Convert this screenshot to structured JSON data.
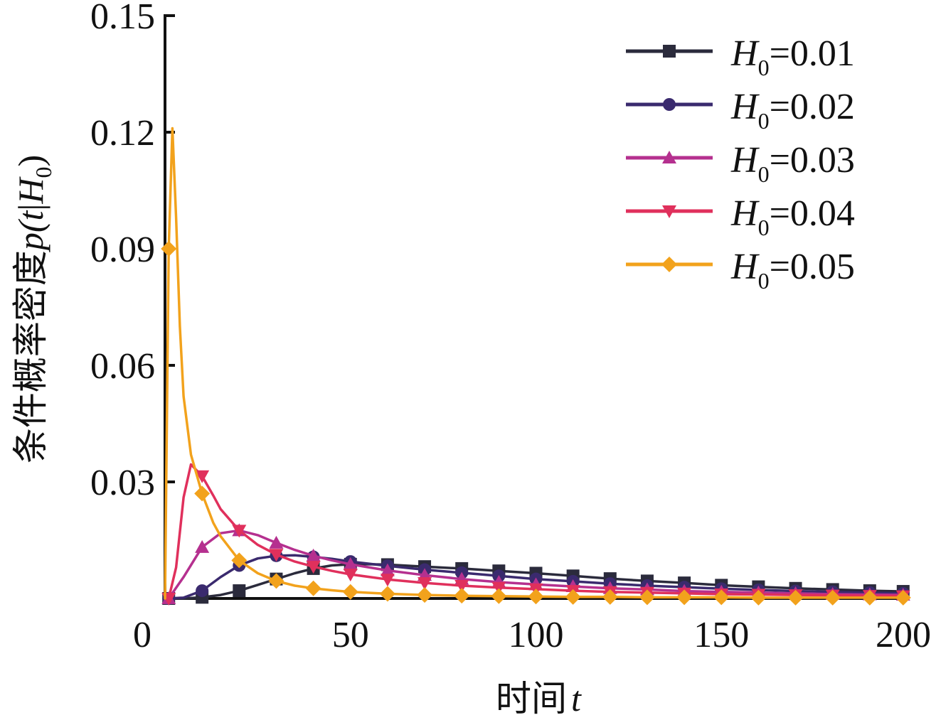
{
  "chart_data": {
    "type": "line",
    "title": "",
    "xlabel": {
      "text": "时间",
      "var": "t"
    },
    "ylabel": {
      "text": "条件概率密度",
      "func": "p(",
      "var": "t",
      "sep": "|",
      "cond": "H",
      "sub": "0",
      "close": ")"
    },
    "xlim": [
      0,
      200
    ],
    "ylim": [
      0,
      0.15
    ],
    "xticks": [
      {
        "v": 0,
        "label": "0"
      },
      {
        "v": 50,
        "label": "50"
      },
      {
        "v": 100,
        "label": "100"
      },
      {
        "v": 150,
        "label": "150"
      },
      {
        "v": 200,
        "label": "200"
      }
    ],
    "yticks": [
      {
        "v": 0.03,
        "label": "0.03"
      },
      {
        "v": 0.06,
        "label": "0.06"
      },
      {
        "v": 0.09,
        "label": "0.09"
      },
      {
        "v": 0.12,
        "label": "0.12"
      },
      {
        "v": 0.15,
        "label": "0.15"
      }
    ],
    "legend_position": "top-right",
    "series": [
      {
        "name": "H0=0.01",
        "legend_var": "H",
        "legend_sub": "0",
        "legend_value": "=0.01",
        "H0": 0.01,
        "color": "#2b2b3c",
        "marker": "square",
        "x": [
          1,
          5,
          10,
          15,
          20,
          25,
          30,
          35,
          40,
          45,
          50,
          55,
          60,
          70,
          80,
          90,
          100,
          110,
          120,
          130,
          140,
          150,
          160,
          170,
          180,
          190,
          200
        ],
        "y": [
          0,
          0,
          0.0003,
          0.0009,
          0.002,
          0.0035,
          0.005,
          0.0065,
          0.0077,
          0.0085,
          0.0088,
          0.0088,
          0.0087,
          0.0082,
          0.0077,
          0.0071,
          0.0065,
          0.0058,
          0.0051,
          0.0045,
          0.004,
          0.0034,
          0.003,
          0.0026,
          0.0023,
          0.002,
          0.0018
        ]
      },
      {
        "name": "H0=0.02",
        "legend_var": "H",
        "legend_sub": "0",
        "legend_value": "=0.02",
        "H0": 0.02,
        "color": "#3a2a6e",
        "marker": "circle",
        "x": [
          1,
          5,
          10,
          15,
          20,
          25,
          30,
          35,
          40,
          45,
          50,
          60,
          70,
          80,
          90,
          100,
          110,
          120,
          130,
          140,
          150,
          160,
          170,
          180,
          190,
          200
        ],
        "y": [
          0,
          0.0002,
          0.002,
          0.0055,
          0.0085,
          0.0103,
          0.011,
          0.0111,
          0.0107,
          0.0102,
          0.0095,
          0.0084,
          0.0074,
          0.0066,
          0.0058,
          0.005,
          0.0044,
          0.0038,
          0.0033,
          0.0029,
          0.0025,
          0.0022,
          0.0019,
          0.0017,
          0.0015,
          0.0013
        ]
      },
      {
        "name": "H0=0.03",
        "legend_var": "H",
        "legend_sub": "0",
        "legend_value": "=0.03",
        "H0": 0.03,
        "color": "#b5308f",
        "marker": "triangle-up",
        "x": [
          1,
          5,
          10,
          15,
          20,
          25,
          30,
          35,
          40,
          45,
          50,
          60,
          70,
          80,
          90,
          100,
          110,
          120,
          130,
          140,
          150,
          160,
          170,
          180,
          190,
          200
        ],
        "y": [
          0,
          0.0055,
          0.0132,
          0.0168,
          0.0175,
          0.0163,
          0.0143,
          0.0125,
          0.011,
          0.0098,
          0.0088,
          0.0072,
          0.006,
          0.005,
          0.0042,
          0.0036,
          0.0031,
          0.0026,
          0.0023,
          0.0019,
          0.0017,
          0.0015,
          0.0013,
          0.0011,
          0.001,
          0.0009
        ]
      },
      {
        "name": "H0=0.04",
        "legend_var": "H",
        "legend_sub": "0",
        "legend_value": "=0.04",
        "H0": 0.04,
        "color": "#e0305c",
        "marker": "triangle-down",
        "x": [
          1,
          3,
          5,
          7,
          10,
          13,
          15,
          20,
          25,
          30,
          35,
          40,
          45,
          50,
          60,
          70,
          80,
          90,
          100,
          110,
          120,
          130,
          140,
          150,
          160,
          170,
          180,
          190,
          200
        ],
        "y": [
          0,
          0.008,
          0.026,
          0.0345,
          0.0315,
          0.0265,
          0.023,
          0.0175,
          0.0138,
          0.0113,
          0.0095,
          0.0082,
          0.0071,
          0.0062,
          0.0049,
          0.004,
          0.0033,
          0.0028,
          0.0024,
          0.002,
          0.0017,
          0.0015,
          0.0013,
          0.0011,
          0.001,
          0.0009,
          0.0008,
          0.0007,
          0.0006
        ]
      },
      {
        "name": "H0=0.05",
        "legend_var": "H",
        "legend_sub": "0",
        "legend_value": "=0.05",
        "H0": 0.05,
        "color": "#f2a21c",
        "marker": "diamond",
        "x": [
          0,
          1,
          2,
          3,
          4,
          5,
          7,
          10,
          13,
          15,
          20,
          25,
          30,
          35,
          40,
          45,
          50,
          60,
          70,
          80,
          90,
          100,
          110,
          120,
          130,
          140,
          150,
          160,
          170,
          180,
          190,
          200
        ],
        "y": [
          0,
          0.09,
          0.121,
          0.098,
          0.07,
          0.052,
          0.037,
          0.027,
          0.0195,
          0.016,
          0.0098,
          0.0065,
          0.0045,
          0.0033,
          0.0026,
          0.0021,
          0.0017,
          0.0012,
          0.0009,
          0.0007,
          0.0006,
          0.0005,
          0.0004,
          0.0004,
          0.0003,
          0.0003,
          0.0003,
          0.0002,
          0.0002,
          0.0002,
          0.0002,
          0.0002
        ]
      }
    ]
  }
}
